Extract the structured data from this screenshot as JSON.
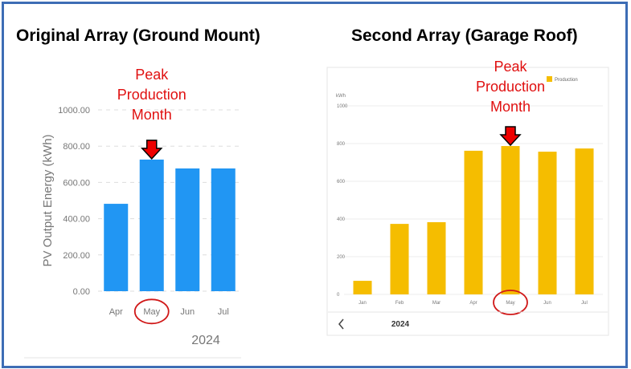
{
  "chart_data": [
    {
      "type": "bar",
      "title": "Original Array (Ground Mount)",
      "ylabel": "PV Output Energy (kWh)",
      "xlabel": "2024",
      "categories": [
        "Apr",
        "May",
        "Jun",
        "Jul"
      ],
      "values": [
        482,
        726,
        677,
        677
      ],
      "ylim": [
        0,
        1000
      ],
      "yticks": [
        "0.00",
        "200.00",
        "400.00",
        "600.00",
        "800.00",
        "1000.00"
      ],
      "grid": true,
      "color": "#2196f3",
      "annotation": {
        "text": [
          "Peak",
          "Production",
          "Month"
        ],
        "target": "May",
        "color": "#e01010"
      }
    },
    {
      "type": "bar",
      "title": "Second Array (Garage Roof)",
      "ylabel": "kWh",
      "xlabel": "2024",
      "categories": [
        "Jan",
        "Feb",
        "Mar",
        "Apr",
        "May",
        "Jun",
        "Jul"
      ],
      "values": [
        72,
        374,
        383,
        762,
        787,
        757,
        774
      ],
      "ylim": [
        0,
        1000
      ],
      "yticks": [
        "0",
        "200",
        "400",
        "600",
        "800",
        "1000"
      ],
      "grid": true,
      "color": "#f5bd00",
      "legend": {
        "label": "Production",
        "position": "top-right"
      },
      "nav": {
        "prev_icon": "chevron-left-icon"
      },
      "annotation": {
        "text": [
          "Peak",
          "Production",
          "Month"
        ],
        "target": "May",
        "color": "#e01010"
      }
    }
  ],
  "colors": {
    "frame": "#3d6db5"
  }
}
